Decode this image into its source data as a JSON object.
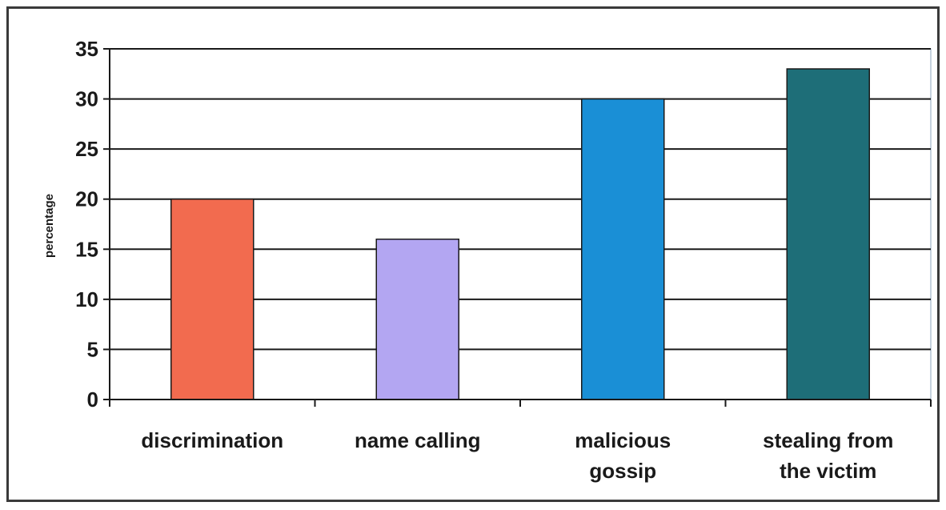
{
  "chart_data": {
    "type": "bar",
    "title": "",
    "xlabel": "",
    "ylabel": "percentage",
    "ylim": [
      0,
      35
    ],
    "ytick_step": 5,
    "yticks": [
      "0",
      "5",
      "10",
      "15",
      "20",
      "25",
      "30",
      "35"
    ],
    "grid": true,
    "legend": "none",
    "categories": [
      [
        "discrimination"
      ],
      [
        "name calling"
      ],
      [
        "malicious",
        "gossip"
      ],
      [
        "stealing from",
        "the victim"
      ]
    ],
    "values": [
      20,
      16,
      30,
      33
    ],
    "colors": [
      "#F26B4F",
      "#B3A6F2",
      "#1A8FD6",
      "#1E6E78"
    ]
  }
}
